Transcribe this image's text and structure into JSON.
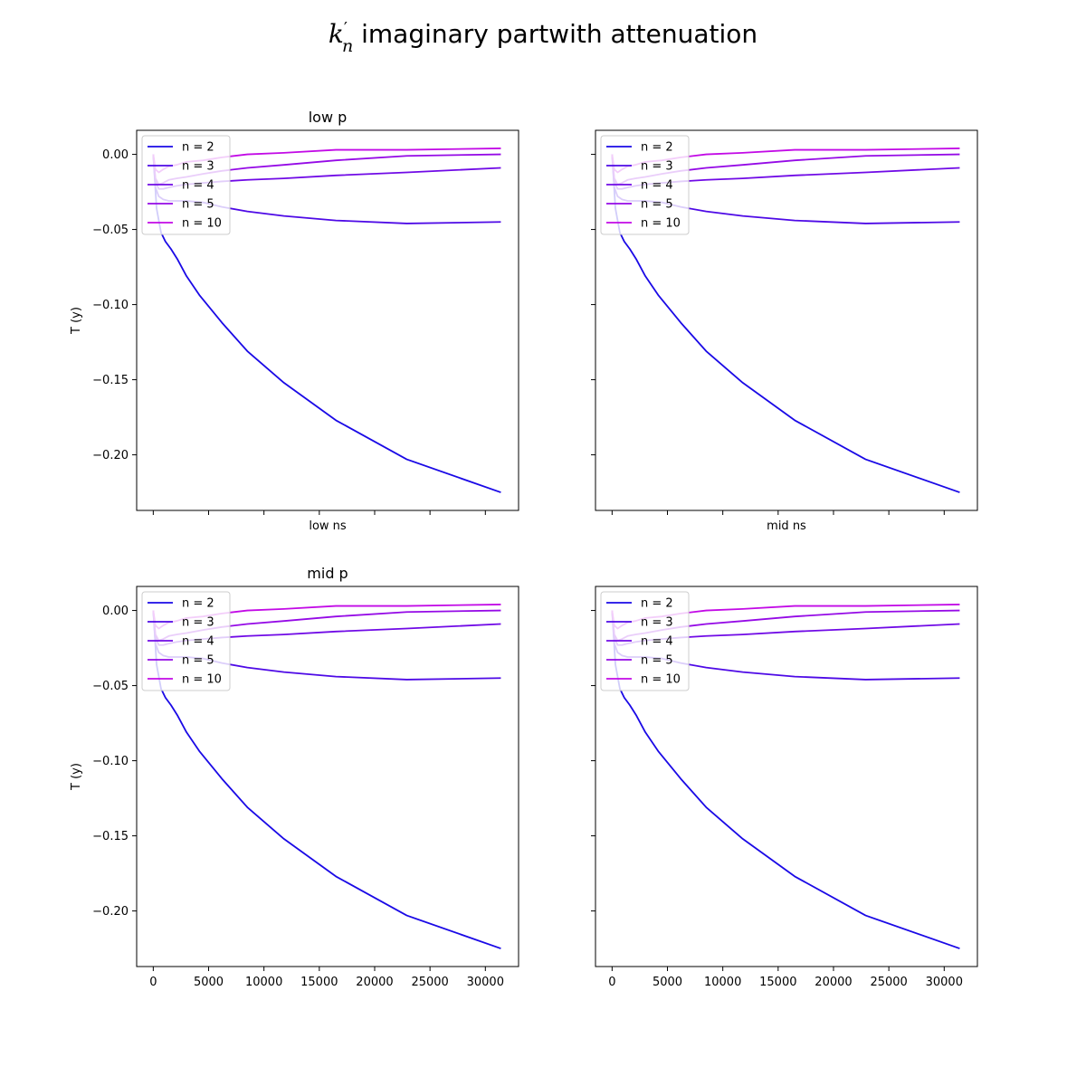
{
  "figure": {
    "suptitle_math_main": "k",
    "suptitle_math_prime": "′",
    "suptitle_math_sub": "n",
    "suptitle_text": " imaginary partwith attenuation"
  },
  "chart_data": [
    {
      "type": "line",
      "title": "low p",
      "xlabel": "low ns",
      "ylabel": "T (y)",
      "show_xticklabels": false,
      "show_yticklabels": true,
      "xlim": [
        -1500,
        33000
      ],
      "ylim": [
        -0.237,
        0.016
      ],
      "xticks": [
        0,
        5000,
        10000,
        15000,
        20000,
        25000,
        30000
      ],
      "yticks": [
        0.0,
        -0.05,
        -0.1,
        -0.15,
        -0.2
      ],
      "ytick_labels": [
        "0.00",
        "−0.05",
        "−0.10",
        "−0.15",
        "−0.20"
      ],
      "grid": false,
      "legend_position": "upper-left",
      "series": [
        {
          "name": "n = 2",
          "color": "#1a09e6",
          "x": [
            0,
            300,
            700,
            1100,
            1600,
            2200,
            3000,
            4200,
            6200,
            8500,
            11800,
            16500,
            22900,
            31400
          ],
          "y": [
            0.0,
            -0.036,
            -0.052,
            -0.058,
            -0.063,
            -0.07,
            -0.081,
            -0.094,
            -0.112,
            -0.131,
            -0.152,
            -0.177,
            -0.203,
            -0.225
          ]
        },
        {
          "name": "n = 3",
          "color": "#4e0ae6",
          "x": [
            0,
            200,
            500,
            900,
            1400,
            2100,
            3000,
            4500,
            6200,
            8500,
            11800,
            16500,
            22900,
            31400
          ],
          "y": [
            0.0,
            -0.022,
            -0.028,
            -0.03,
            -0.031,
            -0.031,
            -0.031,
            -0.032,
            -0.035,
            -0.038,
            -0.041,
            -0.044,
            -0.046,
            -0.045
          ]
        },
        {
          "name": "n = 4",
          "color": "#700ae6",
          "x": [
            0,
            200,
            500,
            900,
            1400,
            2100,
            3000,
            4500,
            6200,
            8500,
            11800,
            16500,
            22900,
            31400
          ],
          "y": [
            0.0,
            -0.018,
            -0.023,
            -0.023,
            -0.022,
            -0.021,
            -0.02,
            -0.019,
            -0.018,
            -0.017,
            -0.016,
            -0.014,
            -0.012,
            -0.009
          ]
        },
        {
          "name": "n = 5",
          "color": "#950ae6",
          "x": [
            0,
            200,
            500,
            900,
            1400,
            2100,
            3000,
            4500,
            6200,
            8500,
            11800,
            16500,
            22900,
            31400
          ],
          "y": [
            0.0,
            -0.016,
            -0.02,
            -0.019,
            -0.017,
            -0.016,
            -0.015,
            -0.013,
            -0.011,
            -0.009,
            -0.007,
            -0.004,
            -0.001,
            0.0
          ]
        },
        {
          "name": "n = 10",
          "color": "#c20ae6",
          "x": [
            0,
            200,
            500,
            900,
            1400,
            2100,
            3000,
            4500,
            6200,
            8500,
            11800,
            16500,
            22900,
            31400
          ],
          "y": [
            0.0,
            -0.01,
            -0.012,
            -0.01,
            -0.008,
            -0.007,
            -0.005,
            -0.004,
            -0.002,
            0.0,
            0.001,
            0.003,
            0.003,
            0.004
          ]
        }
      ]
    },
    {
      "type": "line",
      "title": "",
      "xlabel": "mid ns",
      "ylabel": "",
      "show_xticklabels": false,
      "show_yticklabels": false,
      "xlim": [
        -1500,
        33000
      ],
      "ylim": [
        -0.237,
        0.016
      ],
      "xticks": [
        0,
        5000,
        10000,
        15000,
        20000,
        25000,
        30000
      ],
      "yticks": [
        0.0,
        -0.05,
        -0.1,
        -0.15,
        -0.2
      ],
      "ytick_labels": [
        "0.00",
        "−0.05",
        "−0.10",
        "−0.15",
        "−0.20"
      ],
      "grid": false,
      "legend_position": "upper-left",
      "series": [
        {
          "name": "n = 2",
          "color": "#1a09e6",
          "x": [
            0,
            300,
            700,
            1100,
            1600,
            2200,
            3000,
            4200,
            6200,
            8500,
            11800,
            16500,
            22900,
            31400
          ],
          "y": [
            0.0,
            -0.036,
            -0.052,
            -0.058,
            -0.063,
            -0.07,
            -0.081,
            -0.094,
            -0.112,
            -0.131,
            -0.152,
            -0.177,
            -0.203,
            -0.225
          ]
        },
        {
          "name": "n = 3",
          "color": "#4e0ae6",
          "x": [
            0,
            200,
            500,
            900,
            1400,
            2100,
            3000,
            4500,
            6200,
            8500,
            11800,
            16500,
            22900,
            31400
          ],
          "y": [
            0.0,
            -0.022,
            -0.028,
            -0.03,
            -0.031,
            -0.031,
            -0.031,
            -0.032,
            -0.035,
            -0.038,
            -0.041,
            -0.044,
            -0.046,
            -0.045
          ]
        },
        {
          "name": "n = 4",
          "color": "#700ae6",
          "x": [
            0,
            200,
            500,
            900,
            1400,
            2100,
            3000,
            4500,
            6200,
            8500,
            11800,
            16500,
            22900,
            31400
          ],
          "y": [
            0.0,
            -0.018,
            -0.023,
            -0.023,
            -0.022,
            -0.021,
            -0.02,
            -0.019,
            -0.018,
            -0.017,
            -0.016,
            -0.014,
            -0.012,
            -0.009
          ]
        },
        {
          "name": "n = 5",
          "color": "#950ae6",
          "x": [
            0,
            200,
            500,
            900,
            1400,
            2100,
            3000,
            4500,
            6200,
            8500,
            11800,
            16500,
            22900,
            31400
          ],
          "y": [
            0.0,
            -0.016,
            -0.02,
            -0.019,
            -0.017,
            -0.016,
            -0.015,
            -0.013,
            -0.011,
            -0.009,
            -0.007,
            -0.004,
            -0.001,
            0.0
          ]
        },
        {
          "name": "n = 10",
          "color": "#c20ae6",
          "x": [
            0,
            200,
            500,
            900,
            1400,
            2100,
            3000,
            4500,
            6200,
            8500,
            11800,
            16500,
            22900,
            31400
          ],
          "y": [
            0.0,
            -0.01,
            -0.012,
            -0.01,
            -0.008,
            -0.007,
            -0.005,
            -0.004,
            -0.002,
            0.0,
            0.001,
            0.003,
            0.003,
            0.004
          ]
        }
      ]
    },
    {
      "type": "line",
      "title": "mid p",
      "xlabel": "",
      "ylabel": "T (y)",
      "show_xticklabels": true,
      "show_yticklabels": true,
      "xlim": [
        -1500,
        33000
      ],
      "ylim": [
        -0.237,
        0.016
      ],
      "xticks": [
        0,
        5000,
        10000,
        15000,
        20000,
        25000,
        30000
      ],
      "xtick_labels": [
        "0",
        "5000",
        "10000",
        "15000",
        "20000",
        "25000",
        "30000"
      ],
      "yticks": [
        0.0,
        -0.05,
        -0.1,
        -0.15,
        -0.2
      ],
      "ytick_labels": [
        "0.00",
        "−0.05",
        "−0.10",
        "−0.15",
        "−0.20"
      ],
      "grid": false,
      "legend_position": "upper-left",
      "series": [
        {
          "name": "n = 2",
          "color": "#1a09e6",
          "x": [
            0,
            300,
            700,
            1100,
            1600,
            2200,
            3000,
            4200,
            6200,
            8500,
            11800,
            16500,
            22900,
            31400
          ],
          "y": [
            0.0,
            -0.036,
            -0.052,
            -0.058,
            -0.063,
            -0.07,
            -0.081,
            -0.094,
            -0.112,
            -0.131,
            -0.152,
            -0.177,
            -0.203,
            -0.225
          ]
        },
        {
          "name": "n = 3",
          "color": "#4e0ae6",
          "x": [
            0,
            200,
            500,
            900,
            1400,
            2100,
            3000,
            4500,
            6200,
            8500,
            11800,
            16500,
            22900,
            31400
          ],
          "y": [
            0.0,
            -0.022,
            -0.028,
            -0.03,
            -0.031,
            -0.031,
            -0.031,
            -0.032,
            -0.035,
            -0.038,
            -0.041,
            -0.044,
            -0.046,
            -0.045
          ]
        },
        {
          "name": "n = 4",
          "color": "#700ae6",
          "x": [
            0,
            200,
            500,
            900,
            1400,
            2100,
            3000,
            4500,
            6200,
            8500,
            11800,
            16500,
            22900,
            31400
          ],
          "y": [
            0.0,
            -0.018,
            -0.023,
            -0.023,
            -0.022,
            -0.021,
            -0.02,
            -0.019,
            -0.018,
            -0.017,
            -0.016,
            -0.014,
            -0.012,
            -0.009
          ]
        },
        {
          "name": "n = 5",
          "color": "#950ae6",
          "x": [
            0,
            200,
            500,
            900,
            1400,
            2100,
            3000,
            4500,
            6200,
            8500,
            11800,
            16500,
            22900,
            31400
          ],
          "y": [
            0.0,
            -0.016,
            -0.02,
            -0.019,
            -0.017,
            -0.016,
            -0.015,
            -0.013,
            -0.011,
            -0.009,
            -0.007,
            -0.004,
            -0.001,
            0.0
          ]
        },
        {
          "name": "n = 10",
          "color": "#c20ae6",
          "x": [
            0,
            200,
            500,
            900,
            1400,
            2100,
            3000,
            4500,
            6200,
            8500,
            11800,
            16500,
            22900,
            31400
          ],
          "y": [
            0.0,
            -0.01,
            -0.012,
            -0.01,
            -0.008,
            -0.007,
            -0.005,
            -0.004,
            -0.002,
            0.0,
            0.001,
            0.003,
            0.003,
            0.004
          ]
        }
      ]
    },
    {
      "type": "line",
      "title": "",
      "xlabel": "",
      "ylabel": "",
      "show_xticklabels": true,
      "show_yticklabels": false,
      "xlim": [
        -1500,
        33000
      ],
      "ylim": [
        -0.237,
        0.016
      ],
      "xticks": [
        0,
        5000,
        10000,
        15000,
        20000,
        25000,
        30000
      ],
      "xtick_labels": [
        "0",
        "5000",
        "10000",
        "15000",
        "20000",
        "25000",
        "30000"
      ],
      "yticks": [
        0.0,
        -0.05,
        -0.1,
        -0.15,
        -0.2
      ],
      "ytick_labels": [
        "0.00",
        "−0.05",
        "−0.10",
        "−0.15",
        "−0.20"
      ],
      "grid": false,
      "legend_position": "upper-left",
      "series": [
        {
          "name": "n = 2",
          "color": "#1a09e6",
          "x": [
            0,
            300,
            700,
            1100,
            1600,
            2200,
            3000,
            4200,
            6200,
            8500,
            11800,
            16500,
            22900,
            31400
          ],
          "y": [
            0.0,
            -0.036,
            -0.052,
            -0.058,
            -0.063,
            -0.07,
            -0.081,
            -0.094,
            -0.112,
            -0.131,
            -0.152,
            -0.177,
            -0.203,
            -0.225
          ]
        },
        {
          "name": "n = 3",
          "color": "#4e0ae6",
          "x": [
            0,
            200,
            500,
            900,
            1400,
            2100,
            3000,
            4500,
            6200,
            8500,
            11800,
            16500,
            22900,
            31400
          ],
          "y": [
            0.0,
            -0.022,
            -0.028,
            -0.03,
            -0.031,
            -0.031,
            -0.031,
            -0.032,
            -0.035,
            -0.038,
            -0.041,
            -0.044,
            -0.046,
            -0.045
          ]
        },
        {
          "name": "n = 4",
          "color": "#700ae6",
          "x": [
            0,
            200,
            500,
            900,
            1400,
            2100,
            3000,
            4500,
            6200,
            8500,
            11800,
            16500,
            22900,
            31400
          ],
          "y": [
            0.0,
            -0.018,
            -0.023,
            -0.023,
            -0.022,
            -0.021,
            -0.02,
            -0.019,
            -0.018,
            -0.017,
            -0.016,
            -0.014,
            -0.012,
            -0.009
          ]
        },
        {
          "name": "n = 5",
          "color": "#950ae6",
          "x": [
            0,
            200,
            500,
            900,
            1400,
            2100,
            3000,
            4500,
            6200,
            8500,
            11800,
            16500,
            22900,
            31400
          ],
          "y": [
            0.0,
            -0.016,
            -0.02,
            -0.019,
            -0.017,
            -0.016,
            -0.015,
            -0.013,
            -0.011,
            -0.009,
            -0.007,
            -0.004,
            -0.001,
            0.0
          ]
        },
        {
          "name": "n = 10",
          "color": "#c20ae6",
          "x": [
            0,
            200,
            500,
            900,
            1400,
            2100,
            3000,
            4500,
            6200,
            8500,
            11800,
            16500,
            22900,
            31400
          ],
          "y": [
            0.0,
            -0.01,
            -0.012,
            -0.01,
            -0.008,
            -0.007,
            -0.005,
            -0.004,
            -0.002,
            0.0,
            0.001,
            0.003,
            0.003,
            0.004
          ]
        }
      ]
    }
  ]
}
